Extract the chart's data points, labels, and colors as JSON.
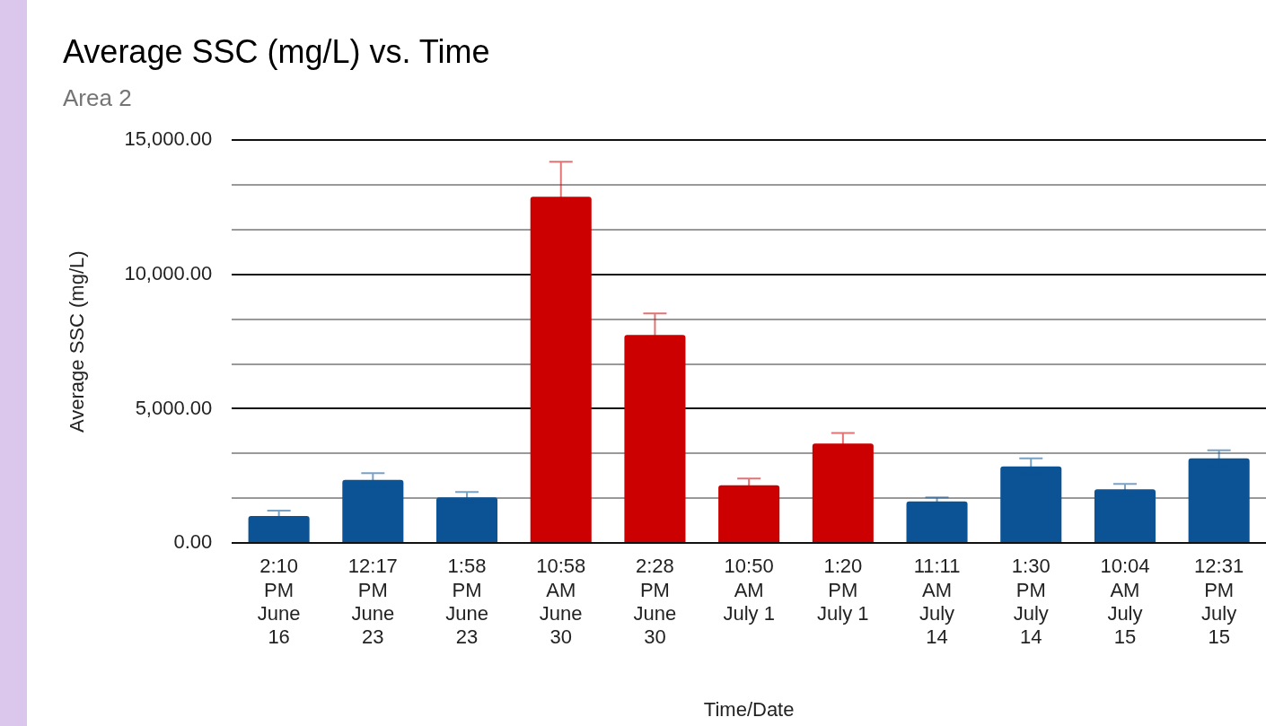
{
  "chart_data": {
    "type": "bar",
    "title": "Average SSC (mg/L) vs. Time",
    "subtitle": "Area 2",
    "xlabel": "Time/Date",
    "ylabel": "Average SSC (mg/L)",
    "categories": [
      "2:10 PM June 16",
      "12:17 PM June 23",
      "1:58 PM June 23",
      "10:58 AM June 30",
      "2:28 PM June 30",
      "10:50 AM July 1",
      "1:20 PM July 1",
      "11:11 AM July 14",
      "1:30 PM July 14",
      "10:04 AM July 15",
      "12:31 PM July 15"
    ],
    "values": [
      1000,
      2350,
      1700,
      12900,
      7750,
      2150,
      3700,
      1550,
      2850,
      2000,
      3150
    ],
    "errors": [
      200,
      250,
      200,
      1300,
      800,
      250,
      400,
      150,
      300,
      200,
      300
    ],
    "colors": [
      "#0b5394",
      "#0b5394",
      "#0b5394",
      "#cc0000",
      "#cc0000",
      "#cc0000",
      "#cc0000",
      "#0b5394",
      "#0b5394",
      "#0b5394",
      "#0b5394"
    ],
    "ylim": [
      0,
      15000
    ],
    "yticks": [
      {
        "value": 0,
        "label": "0.00"
      },
      {
        "value": 1666.67,
        "label": null
      },
      {
        "value": 3333.33,
        "label": null
      },
      {
        "value": 5000,
        "label": "5,000.00"
      },
      {
        "value": 6666.67,
        "label": null
      },
      {
        "value": 8333.33,
        "label": null
      },
      {
        "value": 10000,
        "label": "10,000.00"
      },
      {
        "value": 11666.67,
        "label": null
      },
      {
        "value": 13333.33,
        "label": null
      },
      {
        "value": 15000,
        "label": "15,000.00"
      }
    ],
    "grid": "y"
  }
}
